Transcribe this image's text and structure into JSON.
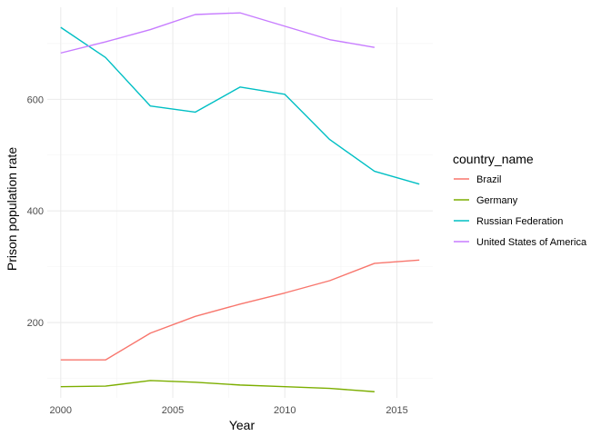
{
  "chart_data": {
    "type": "line",
    "xlabel": "Year",
    "ylabel": "Prison population rate",
    "legend_title": "country_name",
    "legend_position": "right",
    "grid": true,
    "xlim": [
      1999.4,
      2016.6
    ],
    "ylim": [
      65,
      765
    ],
    "x_ticks": [
      2000,
      2005,
      2010,
      2015
    ],
    "y_ticks": [
      200,
      400,
      600
    ],
    "series": [
      {
        "name": "Brazil",
        "color": "#F8766D",
        "x": [
          2000,
          2002,
          2004,
          2006,
          2008,
          2010,
          2012,
          2014,
          2016
        ],
        "y": [
          133,
          133,
          181,
          211,
          233,
          253,
          275,
          306,
          312
        ]
      },
      {
        "name": "Germany",
        "color": "#7CAE00",
        "x": [
          2000,
          2002,
          2004,
          2006,
          2008,
          2010,
          2012,
          2014
        ],
        "y": [
          85,
          86,
          96,
          93,
          88,
          85,
          82,
          76
        ]
      },
      {
        "name": "Russian Federation",
        "color": "#00BFC4",
        "x": [
          2000,
          2002,
          2004,
          2006,
          2008,
          2010,
          2012,
          2014,
          2016
        ],
        "y": [
          729,
          675,
          588,
          577,
          622,
          609,
          528,
          471,
          448
        ]
      },
      {
        "name": "United States of America",
        "color": "#C77CFF",
        "x": [
          2000,
          2002,
          2004,
          2006,
          2008,
          2010,
          2012,
          2014
        ],
        "y": [
          683,
          703,
          725,
          752,
          755,
          731,
          707,
          693
        ]
      }
    ]
  }
}
